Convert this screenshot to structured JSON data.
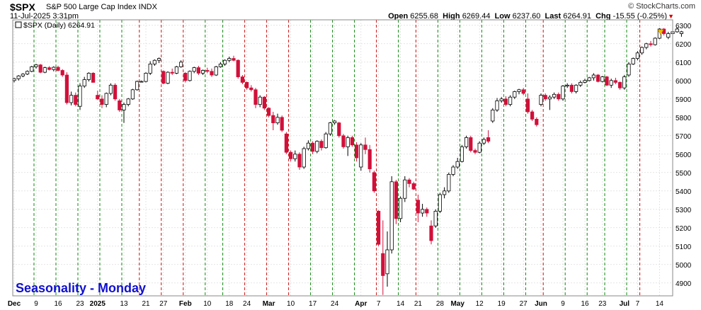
{
  "header": {
    "ticker": "$SPX",
    "description": "S&P 500 Large Cap Index INDX",
    "datetime": "11-Jul-2025 3:31pm",
    "brand": "© StockCharts.com",
    "open_label": "Open",
    "open": "6255.68",
    "high_label": "High",
    "high": "6269.44",
    "low_label": "Low",
    "low": "6237.60",
    "last_label": "Last",
    "last": "6264.91",
    "chg_label": "Chg",
    "chg": "-15.55 (-0.25%)",
    "legend": "$SPX (Daily) 6264.91"
  },
  "colors": {
    "up": "#ffffff",
    "down": "#d0103a",
    "outline": "#000000",
    "monday_up_line": "#118811",
    "monday_down_line": "#cc1111",
    "grid": "#d4d4d4",
    "annotation": "#1010d0"
  },
  "chart_data": {
    "type": "candlestick",
    "title": "Seasonality - Monday",
    "ylim": [
      4830,
      6330
    ],
    "yticks": [
      4900,
      5000,
      5100,
      5200,
      5300,
      5400,
      5500,
      5600,
      5700,
      5800,
      5900,
      6000,
      6100,
      6200,
      6300
    ],
    "x_labels": [
      {
        "label": "Dec",
        "idx": 0
      },
      {
        "label": "9",
        "idx": 5
      },
      {
        "label": "16",
        "idx": 10
      },
      {
        "label": "23",
        "idx": 15
      },
      {
        "label": "2025",
        "idx": 19
      },
      {
        "label": "13",
        "idx": 25
      },
      {
        "label": "21",
        "idx": 30
      },
      {
        "label": "27",
        "idx": 34
      },
      {
        "label": "Feb",
        "idx": 39
      },
      {
        "label": "10",
        "idx": 44
      },
      {
        "label": "18",
        "idx": 49
      },
      {
        "label": "24",
        "idx": 53
      },
      {
        "label": "Mar",
        "idx": 58
      },
      {
        "label": "10",
        "idx": 63
      },
      {
        "label": "17",
        "idx": 68
      },
      {
        "label": "24",
        "idx": 73
      },
      {
        "label": "Apr",
        "idx": 79
      },
      {
        "label": "7",
        "idx": 83
      },
      {
        "label": "14",
        "idx": 88
      },
      {
        "label": "21",
        "idx": 92
      },
      {
        "label": "28",
        "idx": 97
      },
      {
        "label": "May",
        "idx": 101
      },
      {
        "label": "12",
        "idx": 106
      },
      {
        "label": "19",
        "idx": 111
      },
      {
        "label": "27",
        "idx": 116
      },
      {
        "label": "Jun",
        "idx": 120
      },
      {
        "label": "9",
        "idx": 125
      },
      {
        "label": "16",
        "idx": 130
      },
      {
        "label": "23",
        "idx": 134
      },
      {
        "label": "Jul",
        "idx": 139
      },
      {
        "label": "7",
        "idx": 142
      },
      {
        "label": "14",
        "idx": 147
      }
    ],
    "monday_lines": [
      {
        "idx": 5,
        "direction": "up"
      },
      {
        "idx": 10,
        "direction": "up"
      },
      {
        "idx": 15,
        "direction": "up"
      },
      {
        "idx": 20,
        "direction": "up"
      },
      {
        "idx": 25,
        "direction": "up"
      },
      {
        "idx": 29,
        "direction": "down"
      },
      {
        "idx": 34,
        "direction": "down"
      },
      {
        "idx": 39,
        "direction": "down"
      },
      {
        "idx": 44,
        "direction": "up"
      },
      {
        "idx": 48,
        "direction": "up"
      },
      {
        "idx": 53,
        "direction": "down"
      },
      {
        "idx": 58,
        "direction": "down"
      },
      {
        "idx": 63,
        "direction": "down"
      },
      {
        "idx": 68,
        "direction": "up"
      },
      {
        "idx": 73,
        "direction": "up"
      },
      {
        "idx": 78,
        "direction": "up"
      },
      {
        "idx": 83,
        "direction": "down"
      },
      {
        "idx": 88,
        "direction": "up"
      },
      {
        "idx": 92,
        "direction": "down"
      },
      {
        "idx": 97,
        "direction": "up"
      },
      {
        "idx": 102,
        "direction": "up"
      },
      {
        "idx": 107,
        "direction": "up"
      },
      {
        "idx": 112,
        "direction": "up"
      },
      {
        "idx": 117,
        "direction": "up"
      },
      {
        "idx": 121,
        "direction": "down"
      },
      {
        "idx": 126,
        "direction": "up"
      },
      {
        "idx": 131,
        "direction": "up"
      },
      {
        "idx": 135,
        "direction": "up"
      },
      {
        "idx": 140,
        "direction": "up"
      },
      {
        "idx": 143,
        "direction": "down"
      }
    ],
    "candles": [
      {
        "o": 6000,
        "h": 6015,
        "l": 5990,
        "c": 6010
      },
      {
        "o": 6010,
        "h": 6030,
        "l": 6000,
        "c": 6025
      },
      {
        "o": 6025,
        "h": 6040,
        "l": 6018,
        "c": 6035
      },
      {
        "o": 6035,
        "h": 6055,
        "l": 6030,
        "c": 6050
      },
      {
        "o": 6050,
        "h": 6080,
        "l": 6045,
        "c": 6075
      },
      {
        "o": 6075,
        "h": 6090,
        "l": 6065,
        "c": 6085
      },
      {
        "o": 6085,
        "h": 6090,
        "l": 6040,
        "c": 6045
      },
      {
        "o": 6045,
        "h": 6075,
        "l": 6040,
        "c": 6070
      },
      {
        "o": 6070,
        "h": 6078,
        "l": 6055,
        "c": 6060
      },
      {
        "o": 6060,
        "h": 6078,
        "l": 6050,
        "c": 6072
      },
      {
        "o": 6072,
        "h": 6080,
        "l": 6050,
        "c": 6055
      },
      {
        "o": 6055,
        "h": 6062,
        "l": 6020,
        "c": 6030
      },
      {
        "o": 6030,
        "h": 6045,
        "l": 5870,
        "c": 5880
      },
      {
        "o": 5880,
        "h": 5940,
        "l": 5865,
        "c": 5920
      },
      {
        "o": 5920,
        "h": 5935,
        "l": 5860,
        "c": 5870
      },
      {
        "o": 5860,
        "h": 5985,
        "l": 5840,
        "c": 5970
      },
      {
        "o": 5970,
        "h": 6020,
        "l": 5960,
        "c": 6005
      },
      {
        "o": 6005,
        "h": 6045,
        "l": 5995,
        "c": 6040
      },
      {
        "o": 6040,
        "h": 6045,
        "l": 5990,
        "c": 5990
      },
      {
        "o": 5920,
        "h": 5945,
        "l": 5895,
        "c": 5900
      },
      {
        "o": 5900,
        "h": 5920,
        "l": 5850,
        "c": 5870
      },
      {
        "o": 5870,
        "h": 5935,
        "l": 5855,
        "c": 5930
      },
      {
        "o": 5930,
        "h": 5985,
        "l": 5920,
        "c": 5975
      },
      {
        "o": 5975,
        "h": 5985,
        "l": 5890,
        "c": 5900
      },
      {
        "o": 5890,
        "h": 5900,
        "l": 5830,
        "c": 5840
      },
      {
        "o": 5840,
        "h": 5880,
        "l": 5770,
        "c": 5870
      },
      {
        "o": 5870,
        "h": 5905,
        "l": 5860,
        "c": 5900
      },
      {
        "o": 5900,
        "h": 5955,
        "l": 5895,
        "c": 5950
      },
      {
        "o": 5950,
        "h": 6000,
        "l": 5945,
        "c": 5995
      },
      {
        "o": 5995,
        "h": 6000,
        "l": 5990,
        "c": 5995
      },
      {
        "o": 5995,
        "h": 6045,
        "l": 5990,
        "c": 6040
      },
      {
        "o": 6040,
        "h": 6105,
        "l": 6030,
        "c": 6090
      },
      {
        "o": 6090,
        "h": 6115,
        "l": 6080,
        "c": 6110
      },
      {
        "o": 6110,
        "h": 6125,
        "l": 6095,
        "c": 6120
      },
      {
        "o": 6050,
        "h": 6055,
        "l": 5980,
        "c": 5985
      },
      {
        "o": 5985,
        "h": 6050,
        "l": 5980,
        "c": 6045
      },
      {
        "o": 6045,
        "h": 6065,
        "l": 6030,
        "c": 6040
      },
      {
        "o": 6040,
        "h": 6080,
        "l": 6035,
        "c": 6075
      },
      {
        "o": 6075,
        "h": 6110,
        "l": 6070,
        "c": 6100
      },
      {
        "o": 6040,
        "h": 6045,
        "l": 5990,
        "c": 6000
      },
      {
        "o": 6000,
        "h": 6055,
        "l": 5995,
        "c": 6050
      },
      {
        "o": 6050,
        "h": 6075,
        "l": 6040,
        "c": 6070
      },
      {
        "o": 6070,
        "h": 6080,
        "l": 6030,
        "c": 6040
      },
      {
        "o": 6040,
        "h": 6060,
        "l": 6030,
        "c": 6055
      },
      {
        "o": 6055,
        "h": 6070,
        "l": 6040,
        "c": 6050
      },
      {
        "o": 6050,
        "h": 6065,
        "l": 6020,
        "c": 6030
      },
      {
        "o": 6030,
        "h": 6080,
        "l": 6025,
        "c": 6075
      },
      {
        "o": 6075,
        "h": 6100,
        "l": 6070,
        "c": 6090
      },
      {
        "o": 6090,
        "h": 6115,
        "l": 6080,
        "c": 6110
      },
      {
        "o": 6110,
        "h": 6130,
        "l": 6100,
        "c": 6120
      },
      {
        "o": 6120,
        "h": 6135,
        "l": 6105,
        "c": 6110
      },
      {
        "o": 6110,
        "h": 6115,
        "l": 6010,
        "c": 6020
      },
      {
        "o": 6020,
        "h": 6030,
        "l": 5980,
        "c": 5990
      },
      {
        "o": 5990,
        "h": 5995,
        "l": 5950,
        "c": 5960
      },
      {
        "o": 5960,
        "h": 5975,
        "l": 5940,
        "c": 5950
      },
      {
        "o": 5950,
        "h": 5960,
        "l": 5850,
        "c": 5870
      },
      {
        "o": 5870,
        "h": 5920,
        "l": 5855,
        "c": 5910
      },
      {
        "o": 5910,
        "h": 5915,
        "l": 5840,
        "c": 5850
      },
      {
        "o": 5850,
        "h": 5855,
        "l": 5800,
        "c": 5810
      },
      {
        "o": 5810,
        "h": 5830,
        "l": 5730,
        "c": 5770
      },
      {
        "o": 5770,
        "h": 5820,
        "l": 5760,
        "c": 5800
      },
      {
        "o": 5800,
        "h": 5810,
        "l": 5720,
        "c": 5730
      },
      {
        "o": 5710,
        "h": 5720,
        "l": 5600,
        "c": 5610
      },
      {
        "o": 5610,
        "h": 5620,
        "l": 5560,
        "c": 5575
      },
      {
        "o": 5575,
        "h": 5620,
        "l": 5560,
        "c": 5600
      },
      {
        "o": 5600,
        "h": 5610,
        "l": 5515,
        "c": 5530
      },
      {
        "o": 5530,
        "h": 5640,
        "l": 5520,
        "c": 5630
      },
      {
        "o": 5630,
        "h": 5675,
        "l": 5620,
        "c": 5660
      },
      {
        "o": 5660,
        "h": 5670,
        "l": 5600,
        "c": 5615
      },
      {
        "o": 5615,
        "h": 5675,
        "l": 5605,
        "c": 5670
      },
      {
        "o": 5670,
        "h": 5680,
        "l": 5620,
        "c": 5635
      },
      {
        "o": 5635,
        "h": 5720,
        "l": 5630,
        "c": 5710
      },
      {
        "o": 5710,
        "h": 5775,
        "l": 5700,
        "c": 5770
      },
      {
        "o": 5770,
        "h": 5785,
        "l": 5760,
        "c": 5780
      },
      {
        "o": 5770,
        "h": 5775,
        "l": 5690,
        "c": 5700
      },
      {
        "o": 5700,
        "h": 5710,
        "l": 5630,
        "c": 5640
      },
      {
        "o": 5640,
        "h": 5700,
        "l": 5590,
        "c": 5690
      },
      {
        "o": 5690,
        "h": 5700,
        "l": 5640,
        "c": 5650
      },
      {
        "o": 5650,
        "h": 5665,
        "l": 5560,
        "c": 5580
      },
      {
        "o": 5530,
        "h": 5660,
        "l": 5510,
        "c": 5650
      },
      {
        "o": 5650,
        "h": 5690,
        "l": 5600,
        "c": 5625
      },
      {
        "o": 5625,
        "h": 5650,
        "l": 5500,
        "c": 5520
      },
      {
        "o": 5500,
        "h": 5510,
        "l": 5390,
        "c": 5400
      },
      {
        "o": 5290,
        "h": 5295,
        "l": 5100,
        "c": 5110
      },
      {
        "o": 5060,
        "h": 5240,
        "l": 4835,
        "c": 4940
      },
      {
        "o": 4950,
        "h": 5180,
        "l": 4880,
        "c": 5080
      },
      {
        "o": 5080,
        "h": 5480,
        "l": 5060,
        "c": 5450
      },
      {
        "o": 5450,
        "h": 5460,
        "l": 5220,
        "c": 5250
      },
      {
        "o": 5250,
        "h": 5370,
        "l": 5230,
        "c": 5360
      },
      {
        "o": 5360,
        "h": 5480,
        "l": 5340,
        "c": 5460
      },
      {
        "o": 5460,
        "h": 5470,
        "l": 5420,
        "c": 5440
      },
      {
        "o": 5440,
        "h": 5450,
        "l": 5405,
        "c": 5410
      },
      {
        "o": 5350,
        "h": 5380,
        "l": 5230,
        "c": 5280
      },
      {
        "o": 5280,
        "h": 5330,
        "l": 5260,
        "c": 5300
      },
      {
        "o": 5300,
        "h": 5310,
        "l": 5260,
        "c": 5280
      },
      {
        "o": 5210,
        "h": 5240,
        "l": 5110,
        "c": 5130
      },
      {
        "o": 5210,
        "h": 5300,
        "l": 5200,
        "c": 5290
      },
      {
        "o": 5290,
        "h": 5390,
        "l": 5280,
        "c": 5380
      },
      {
        "o": 5380,
        "h": 5420,
        "l": 5360,
        "c": 5400
      },
      {
        "o": 5400,
        "h": 5500,
        "l": 5390,
        "c": 5490
      },
      {
        "o": 5490,
        "h": 5540,
        "l": 5480,
        "c": 5530
      },
      {
        "o": 5530,
        "h": 5580,
        "l": 5520,
        "c": 5560
      },
      {
        "o": 5560,
        "h": 5650,
        "l": 5555,
        "c": 5640
      },
      {
        "o": 5640,
        "h": 5700,
        "l": 5630,
        "c": 5690
      },
      {
        "o": 5690,
        "h": 5700,
        "l": 5610,
        "c": 5620
      },
      {
        "o": 5620,
        "h": 5630,
        "l": 5600,
        "c": 5610
      },
      {
        "o": 5610,
        "h": 5670,
        "l": 5605,
        "c": 5660
      },
      {
        "o": 5660,
        "h": 5690,
        "l": 5650,
        "c": 5680
      },
      {
        "o": 5690,
        "h": 5730,
        "l": 5660,
        "c": 5670
      },
      {
        "o": 5780,
        "h": 5850,
        "l": 5770,
        "c": 5840
      },
      {
        "o": 5840,
        "h": 5905,
        "l": 5830,
        "c": 5890
      },
      {
        "o": 5890,
        "h": 5910,
        "l": 5880,
        "c": 5900
      },
      {
        "o": 5900,
        "h": 5915,
        "l": 5860,
        "c": 5870
      },
      {
        "o": 5870,
        "h": 5920,
        "l": 5860,
        "c": 5910
      },
      {
        "o": 5910,
        "h": 5945,
        "l": 5900,
        "c": 5940
      },
      {
        "o": 5940,
        "h": 5955,
        "l": 5925,
        "c": 5950
      },
      {
        "o": 5950,
        "h": 5960,
        "l": 5920,
        "c": 5930
      },
      {
        "o": 5900,
        "h": 5930,
        "l": 5820,
        "c": 5830
      },
      {
        "o": 5830,
        "h": 5840,
        "l": 5780,
        "c": 5790
      },
      {
        "o": 5790,
        "h": 5800,
        "l": 5750,
        "c": 5760
      },
      {
        "o": 5870,
        "h": 5930,
        "l": 5860,
        "c": 5920
      },
      {
        "o": 5920,
        "h": 5930,
        "l": 5890,
        "c": 5900
      },
      {
        "o": 5900,
        "h": 5920,
        "l": 5840,
        "c": 5910
      },
      {
        "o": 5910,
        "h": 5935,
        "l": 5900,
        "c": 5925
      },
      {
        "o": 5925,
        "h": 5935,
        "l": 5890,
        "c": 5900
      },
      {
        "o": 5900,
        "h": 5975,
        "l": 5890,
        "c": 5970
      },
      {
        "o": 5970,
        "h": 5985,
        "l": 5960,
        "c": 5975
      },
      {
        "o": 5975,
        "h": 5985,
        "l": 5930,
        "c": 5940
      },
      {
        "o": 5940,
        "h": 5980,
        "l": 5930,
        "c": 5975
      },
      {
        "o": 5975,
        "h": 6000,
        "l": 5965,
        "c": 5990
      },
      {
        "o": 5990,
        "h": 6010,
        "l": 5985,
        "c": 6000
      },
      {
        "o": 6000,
        "h": 6020,
        "l": 5995,
        "c": 6015
      },
      {
        "o": 6015,
        "h": 6040,
        "l": 6000,
        "c": 6030
      },
      {
        "o": 6030,
        "h": 6035,
        "l": 5990,
        "c": 5995
      },
      {
        "o": 5995,
        "h": 6025,
        "l": 5990,
        "c": 6020
      },
      {
        "o": 6020,
        "h": 6025,
        "l": 5970,
        "c": 5975
      },
      {
        "o": 5975,
        "h": 6010,
        "l": 5960,
        "c": 6000
      },
      {
        "o": 6000,
        "h": 6015,
        "l": 5980,
        "c": 5990
      },
      {
        "o": 5990,
        "h": 5995,
        "l": 5950,
        "c": 5960
      },
      {
        "o": 5960,
        "h": 6030,
        "l": 5950,
        "c": 6020
      },
      {
        "o": 6030,
        "h": 6100,
        "l": 6020,
        "c": 6090
      },
      {
        "o": 6090,
        "h": 6125,
        "l": 6085,
        "c": 6120
      },
      {
        "o": 6120,
        "h": 6160,
        "l": 6110,
        "c": 6150
      },
      {
        "o": 6150,
        "h": 6185,
        "l": 6140,
        "c": 6180
      },
      {
        "o": 6180,
        "h": 6205,
        "l": 6170,
        "c": 6200
      },
      {
        "o": 6200,
        "h": 6215,
        "l": 6185,
        "c": 6195
      },
      {
        "o": 6195,
        "h": 6235,
        "l": 6190,
        "c": 6230
      },
      {
        "o": 6230,
        "h": 6285,
        "l": 6225,
        "c": 6280
      },
      {
        "o": 6280,
        "h": 6285,
        "l": 6245,
        "c": 6255
      },
      {
        "o": 6235,
        "h": 6265,
        "l": 6225,
        "c": 6255
      },
      {
        "o": 6255,
        "h": 6275,
        "l": 6240,
        "c": 6265
      },
      {
        "o": 6265,
        "h": 6290,
        "l": 6260,
        "c": 6280
      },
      {
        "o": 6255,
        "h": 6270,
        "l": 6238,
        "c": 6265
      }
    ]
  }
}
